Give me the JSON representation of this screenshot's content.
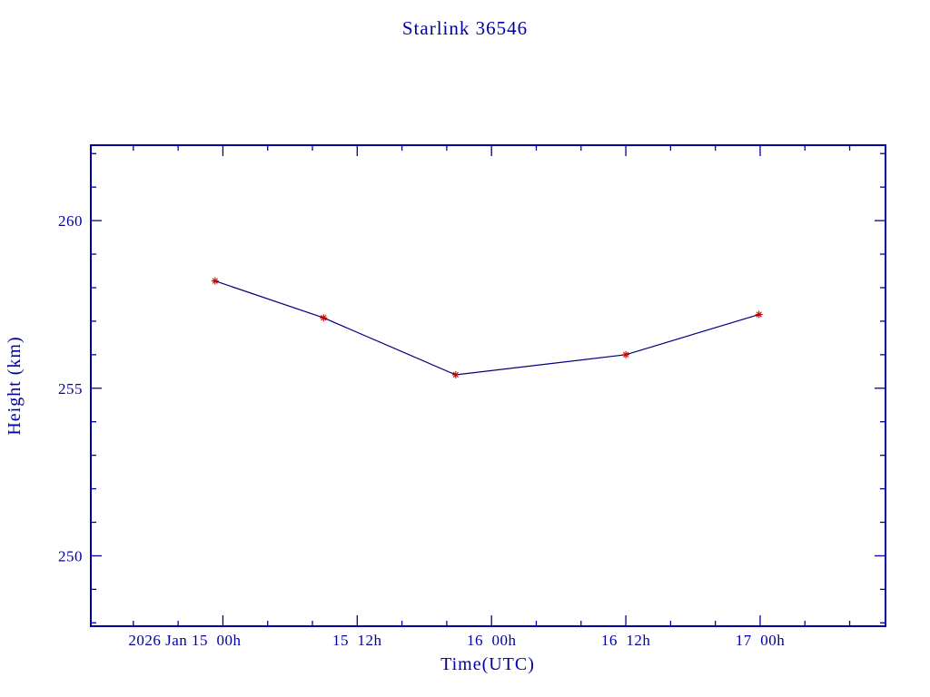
{
  "title": "Starlink 36546",
  "colors": {
    "axis": "#0000A0",
    "text": "#0000A0",
    "line": "#000080",
    "point": "#CC0000",
    "background": "#FFFFFF"
  },
  "chart_data": {
    "type": "line",
    "title": "Starlink 36546",
    "xlabel": "Time(UTC)",
    "ylabel": "Height (km)",
    "x_unit": "hours since 2026 Jan 15 00h UTC",
    "x": [
      -0.7,
      9.0,
      20.8,
      36.0,
      47.9
    ],
    "y": [
      258.2,
      257.1,
      255.4,
      256.0,
      257.2
    ],
    "series_name": "Height (km)",
    "marker": "red-asterisk",
    "grid": false,
    "legend": false,
    "xlim_hours": [
      -11.8,
      59.2
    ],
    "ylim": [
      247.9,
      262.25
    ],
    "x_ticks": [
      {
        "hours": 0,
        "label": "2026 Jan 15  00h",
        "dx": -42
      },
      {
        "hours": 12,
        "label": "15  12h",
        "dx": 0
      },
      {
        "hours": 24,
        "label": "16  00h",
        "dx": 0
      },
      {
        "hours": 36,
        "label": "16  12h",
        "dx": 0
      },
      {
        "hours": 48,
        "label": "17  00h",
        "dx": 0
      }
    ],
    "x_minor_step_hours": 4,
    "y_ticks": [
      250,
      255,
      260
    ],
    "y_minor_step": 1
  }
}
